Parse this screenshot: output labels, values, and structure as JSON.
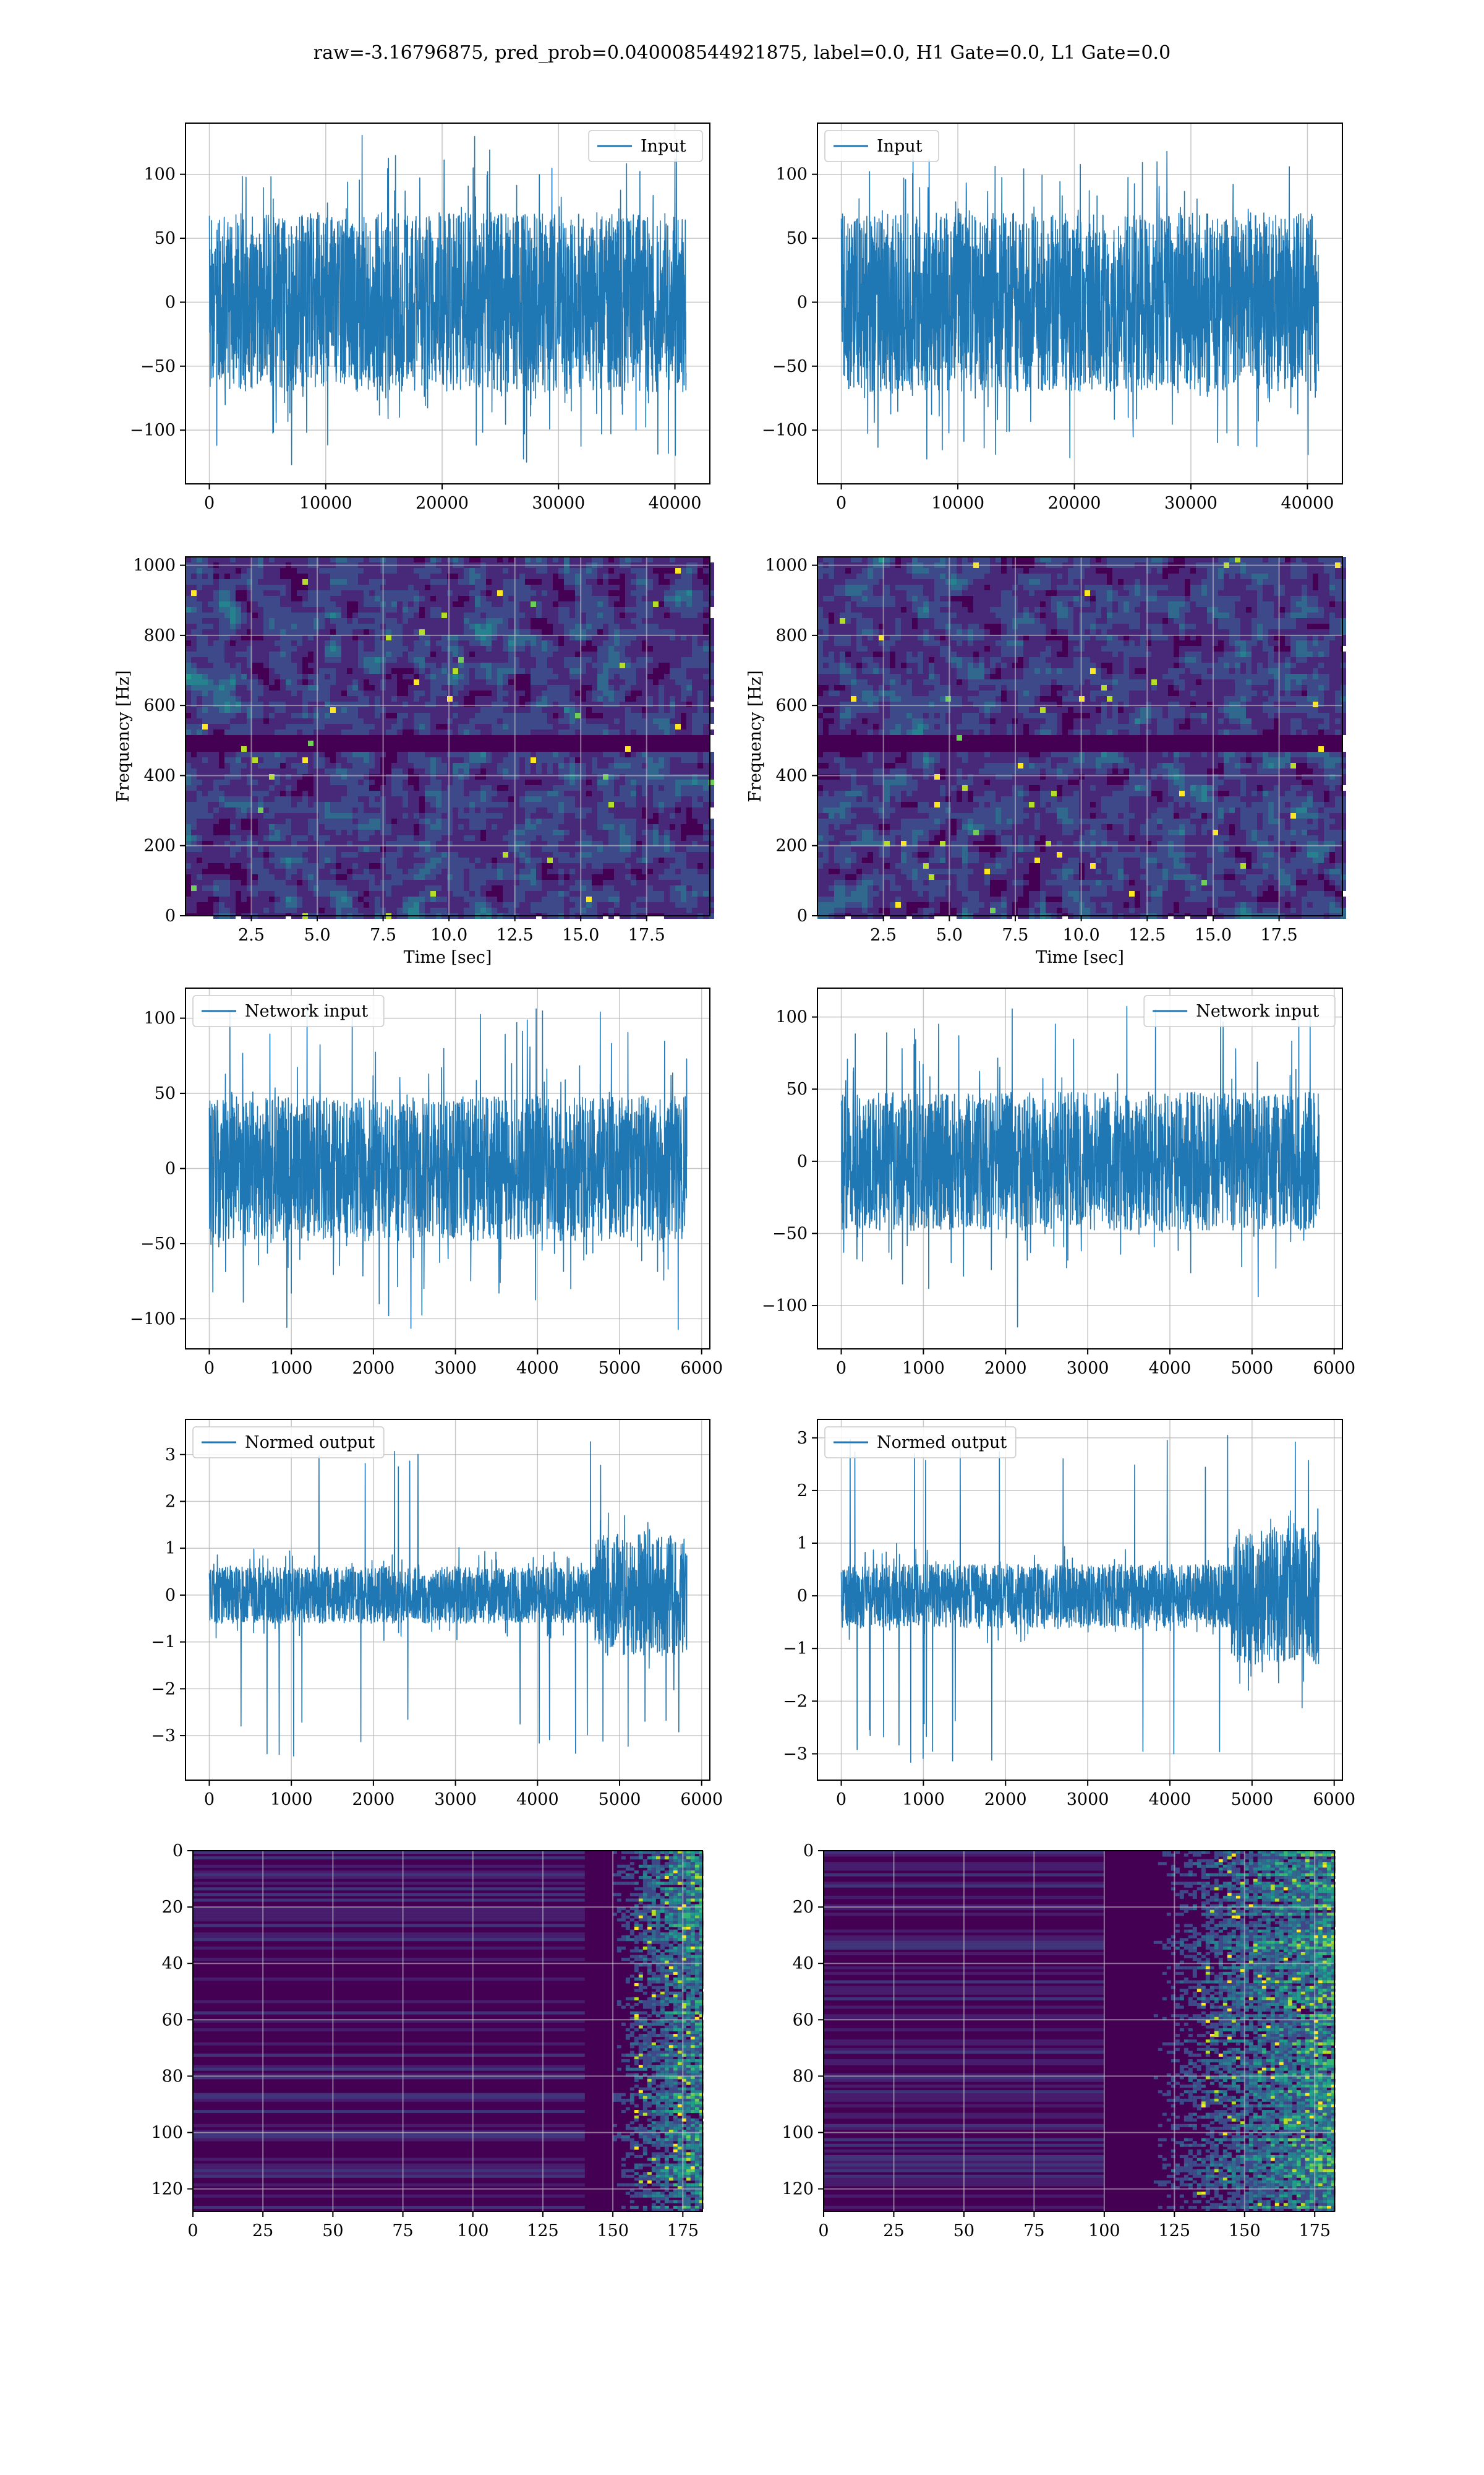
{
  "figure": {
    "suptitle": "raw=-3.16796875, pred_prob=0.040008544921875, label=0.0, H1 Gate=0.0, L1 Gate=0.0"
  },
  "colors": {
    "line": "#1f77b4",
    "grid": "#b0b0b0",
    "viridis": [
      "#440154",
      "#482878",
      "#3e4989",
      "#31688e",
      "#26828e",
      "#1f9e89",
      "#35b779",
      "#6ece58",
      "#b5de2b",
      "#fde725"
    ]
  },
  "chart_data": [
    {
      "id": "p1",
      "type": "line",
      "legend": "Input",
      "legend_loc": "upper right",
      "xlim": [
        -2048,
        43000
      ],
      "ylim": [
        -142,
        140
      ],
      "xticks": [
        0,
        10000,
        20000,
        30000,
        40000
      ],
      "yticks": [
        -100,
        -50,
        0,
        50,
        100
      ],
      "series": [
        {
          "name": "Input",
          "x_range": [
            0,
            40960
          ],
          "band_low": -70,
          "band_high": 70,
          "min": -130,
          "max": 131
        }
      ]
    },
    {
      "id": "p2",
      "type": "line",
      "legend": "Input",
      "legend_loc": "upper left",
      "xlim": [
        -2048,
        43000
      ],
      "ylim": [
        -142,
        140
      ],
      "xticks": [
        0,
        10000,
        20000,
        30000,
        40000
      ],
      "yticks": [
        -100,
        -50,
        0,
        50,
        100
      ],
      "series": [
        {
          "name": "Input",
          "x_range": [
            0,
            40960
          ],
          "band_low": -70,
          "band_high": 70,
          "min": -125,
          "max": 124
        }
      ]
    },
    {
      "id": "p3",
      "type": "heatmap",
      "xlabel": "Time [sec]",
      "ylabel": "Frequency [Hz]",
      "xlim": [
        0,
        19.9
      ],
      "ylim": [
        0,
        1024
      ],
      "xticks": [
        2.5,
        5.0,
        7.5,
        10.0,
        12.5,
        15.0,
        17.5
      ],
      "yticks": [
        0,
        200,
        400,
        600,
        800,
        1000
      ],
      "notch_frequency": 500
    },
    {
      "id": "p4",
      "type": "heatmap",
      "xlabel": "Time [sec]",
      "ylabel": "Frequency [Hz]",
      "xlim": [
        0,
        19.9
      ],
      "ylim": [
        0,
        1024
      ],
      "xticks": [
        2.5,
        5.0,
        7.5,
        10.0,
        12.5,
        15.0,
        17.5
      ],
      "yticks": [
        0,
        200,
        400,
        600,
        800,
        1000
      ],
      "notch_frequency": 500
    },
    {
      "id": "p5",
      "type": "line",
      "legend": "Network input",
      "legend_loc": "upper left",
      "xlim": [
        -290,
        6100
      ],
      "ylim": [
        -120,
        120
      ],
      "xticks": [
        0,
        1000,
        2000,
        3000,
        4000,
        5000,
        6000
      ],
      "yticks": [
        -100,
        -50,
        0,
        50,
        100
      ],
      "series": [
        {
          "name": "Network input",
          "x_range": [
            0,
            5820
          ],
          "band_low": -48,
          "band_high": 48,
          "min": -108,
          "max": 110
        }
      ]
    },
    {
      "id": "p6",
      "type": "line",
      "legend": "Network input",
      "legend_loc": "upper right",
      "xlim": [
        -290,
        6100
      ],
      "ylim": [
        -130,
        120
      ],
      "xticks": [
        0,
        1000,
        2000,
        3000,
        4000,
        5000,
        6000
      ],
      "yticks": [
        -100,
        -50,
        0,
        50,
        100
      ],
      "series": [
        {
          "name": "Network input",
          "x_range": [
            0,
            5820
          ],
          "band_low": -48,
          "band_high": 48,
          "min": -115,
          "max": 108
        }
      ]
    },
    {
      "id": "p7",
      "type": "line",
      "legend": "Normed output",
      "legend_loc": "upper left",
      "xlim": [
        -290,
        6100
      ],
      "ylim": [
        -3.95,
        3.75
      ],
      "xticks": [
        0,
        1000,
        2000,
        3000,
        4000,
        5000,
        6000
      ],
      "yticks": [
        -3,
        -2,
        -1,
        0,
        1,
        2,
        3
      ],
      "series": [
        {
          "name": "Normed output",
          "x_range": [
            0,
            5820
          ],
          "burst_start": 4700,
          "quiet_band": 0.6,
          "burst_band": 1.3,
          "min": -3.5,
          "max": 3.5
        }
      ]
    },
    {
      "id": "p8",
      "type": "line",
      "legend": "Normed output",
      "legend_loc": "upper left",
      "xlim": [
        -290,
        6100
      ],
      "ylim": [
        -3.5,
        3.35
      ],
      "xticks": [
        0,
        1000,
        2000,
        3000,
        4000,
        5000,
        6000
      ],
      "yticks": [
        -3,
        -2,
        -1,
        0,
        1,
        2,
        3
      ],
      "series": [
        {
          "name": "Normed output",
          "x_range": [
            0,
            5820
          ],
          "burst_start": 4750,
          "quiet_band": 0.6,
          "burst_band": 1.3,
          "min": -3.2,
          "max": 3.05
        }
      ]
    },
    {
      "id": "p9",
      "type": "heatmap",
      "xlim": [
        0,
        182
      ],
      "ylim": [
        128,
        0
      ],
      "xticks": [
        0,
        25,
        50,
        75,
        100,
        125,
        150,
        175
      ],
      "yticks": [
        0,
        20,
        40,
        60,
        80,
        100,
        120
      ],
      "activity_start": 140
    },
    {
      "id": "p10",
      "type": "heatmap",
      "xlim": [
        0,
        182
      ],
      "ylim": [
        128,
        0
      ],
      "xticks": [
        0,
        25,
        50,
        75,
        100,
        125,
        150,
        175
      ],
      "yticks": [
        0,
        20,
        40,
        60,
        80,
        100,
        120
      ],
      "activity_start": 100
    }
  ]
}
